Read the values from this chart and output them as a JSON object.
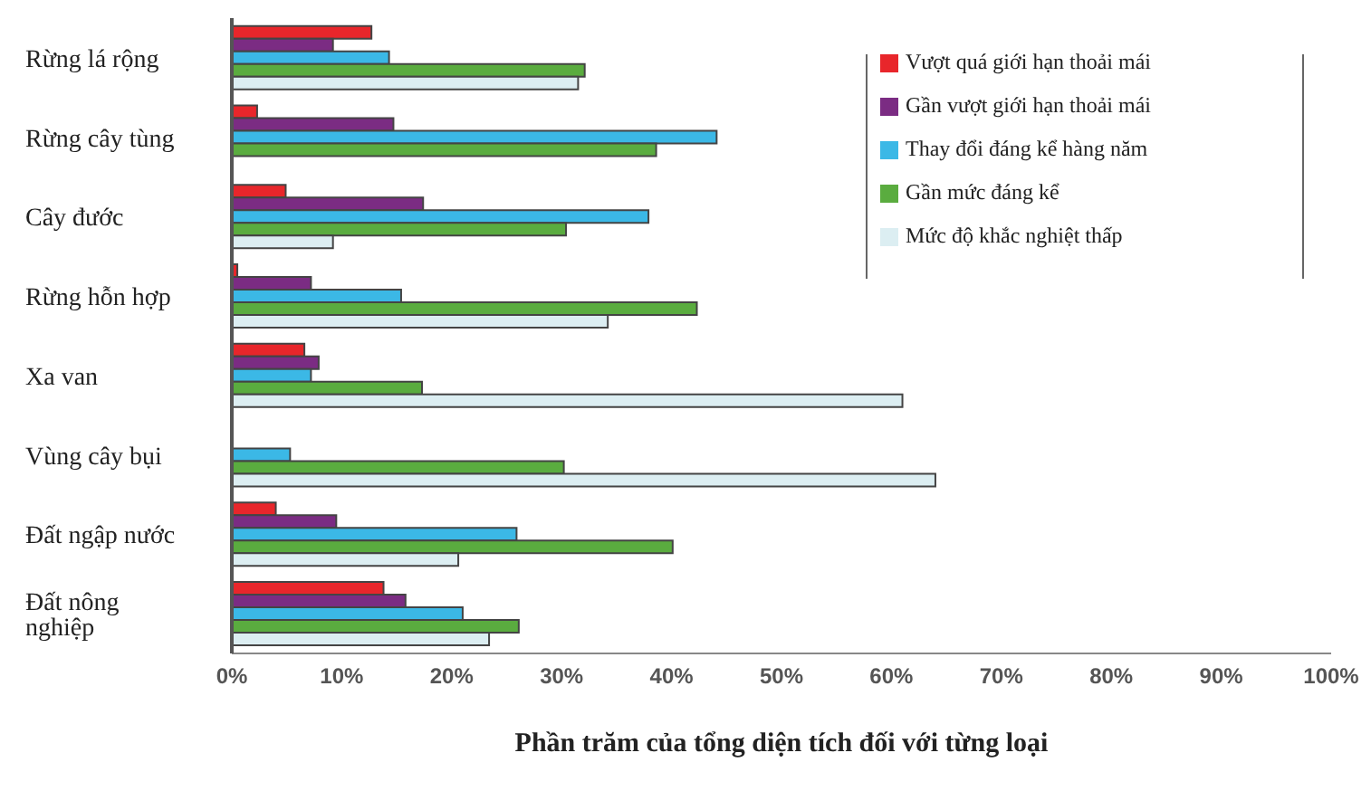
{
  "chart_data": {
    "type": "bar",
    "orientation": "horizontal",
    "xlabel": "Phần trăm của tổng diện tích đối với từng loại",
    "categories": [
      "Rừng lá rộng",
      "Rừng cây tùng",
      "Cây đước",
      "Rừng hỗn hợp",
      "Xa van",
      "Vùng cây bụi",
      "Đất ngập nước",
      "Đất nông nghiệp"
    ],
    "series": [
      {
        "name": "Vượt quá giới hạn thoải mái",
        "color": "#e8262b",
        "values": [
          12.7,
          2.3,
          4.9,
          0.5,
          6.6,
          null,
          4.0,
          13.8
        ]
      },
      {
        "name": "Gần vượt giới hạn thoải mái",
        "color": "#7b2c83",
        "values": [
          9.2,
          14.7,
          17.4,
          7.2,
          7.9,
          null,
          9.5,
          15.8
        ]
      },
      {
        "name": "Thay đổi đáng kể hàng năm",
        "color": "#3bb8e6",
        "values": [
          14.3,
          44.1,
          37.9,
          15.4,
          7.2,
          5.3,
          25.9,
          21.0
        ]
      },
      {
        "name": "Gần mức đáng kể",
        "color": "#5aac3f",
        "values": [
          32.1,
          38.6,
          30.4,
          42.3,
          17.3,
          30.2,
          40.1,
          26.1
        ]
      },
      {
        "name": "Mức độ khắc nghiệt thấp",
        "color": "#dceef2",
        "values": [
          31.5,
          null,
          9.2,
          34.2,
          61.0,
          64.0,
          20.6,
          23.4
        ]
      }
    ],
    "xlim": [
      0,
      100
    ],
    "xticks": [
      {
        "value": 0,
        "label": "0%"
      },
      {
        "value": 10,
        "label": "10%"
      },
      {
        "value": 20,
        "label": "20%"
      },
      {
        "value": 30,
        "label": "30%"
      },
      {
        "value": 40,
        "label": "40%"
      },
      {
        "value": 50,
        "label": "50%"
      },
      {
        "value": 60,
        "label": "60%"
      },
      {
        "value": 70,
        "label": "70%"
      },
      {
        "value": 80,
        "label": "80%"
      },
      {
        "value": 90,
        "label": "90%"
      },
      {
        "value": 100,
        "label": "100%"
      }
    ],
    "grid": false,
    "legend": "top right"
  }
}
